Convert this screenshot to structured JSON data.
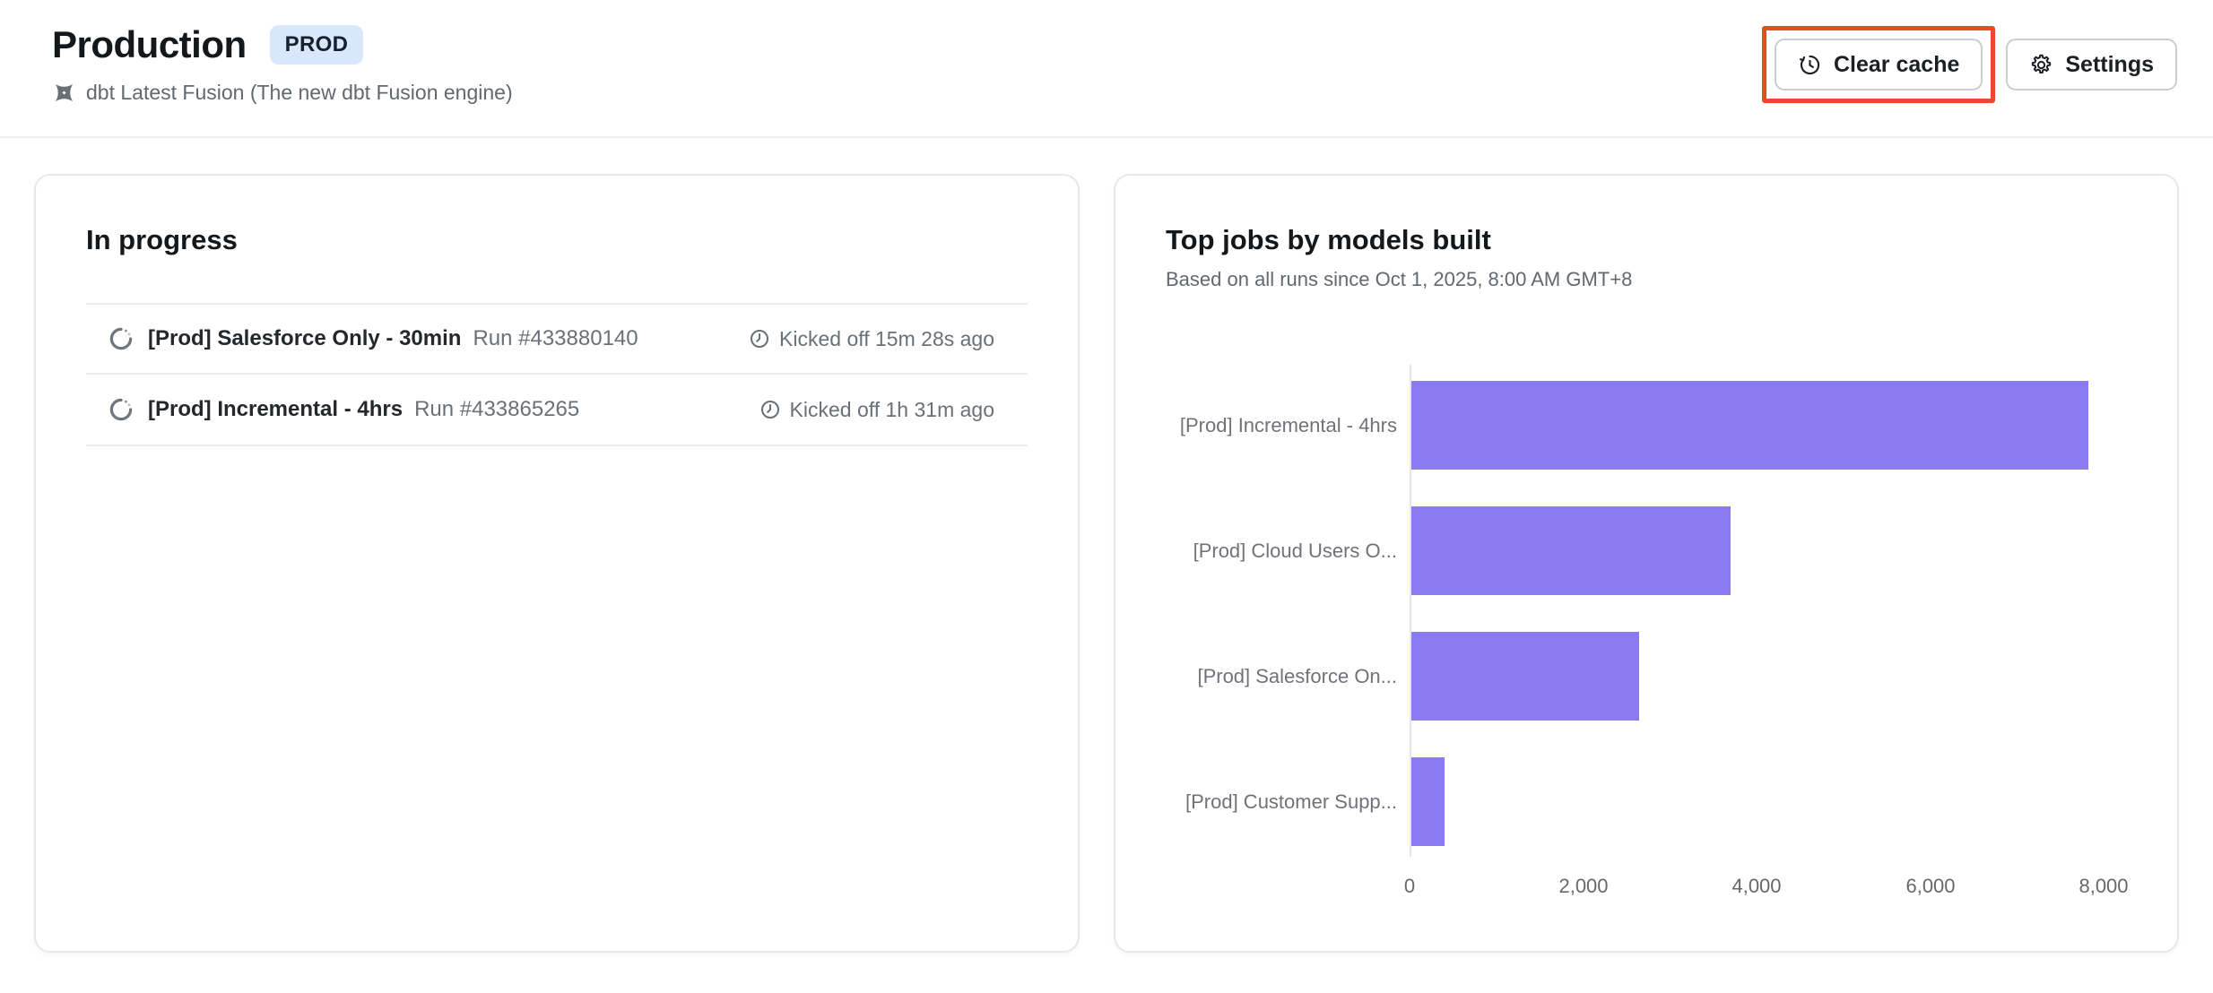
{
  "header": {
    "title": "Production",
    "env_badge": "PROD",
    "engine": "dbt Latest Fusion (The new dbt Fusion engine)",
    "buttons": {
      "clear_cache": "Clear cache",
      "settings": "Settings"
    },
    "annotation_color": "#e84a2b",
    "badge_bg": "#d8e7fb"
  },
  "in_progress": {
    "heading": "In progress",
    "runs": [
      {
        "name": "[Prod] Salesforce Only - 30min",
        "run_number": "Run #433880140",
        "kicked_off": "Kicked off 15m 28s ago"
      },
      {
        "name": "[Prod] Incremental - 4hrs",
        "run_number": "Run #433865265",
        "kicked_off": "Kicked off 1h 31m ago"
      }
    ]
  },
  "top_jobs": {
    "heading": "Top jobs by models built",
    "subheading": "Based on all runs since Oct 1, 2025, 8:00 AM GMT+8"
  },
  "chart_data": {
    "type": "bar",
    "orientation": "horizontal",
    "title": "Top jobs by models built",
    "subtitle": "Based on all runs since Oct 1, 2025, 8:00 AM GMT+8",
    "categories": [
      "[Prod] Incremental - 4hrs",
      "[Prod] Cloud Users O...",
      "[Prod] Salesforce On...",
      "[Prod] Customer Supp..."
    ],
    "values": [
      7800,
      3680,
      2630,
      380
    ],
    "xlabel": "",
    "ylabel": "",
    "xlim": [
      0,
      8000
    ],
    "xticks": [
      0,
      2000,
      4000,
      6000,
      8000
    ],
    "xtick_labels": [
      "0",
      "2,000",
      "4,000",
      "6,000",
      "8,000"
    ],
    "bar_color": "#8c7af3",
    "grid": false,
    "legend": false
  }
}
